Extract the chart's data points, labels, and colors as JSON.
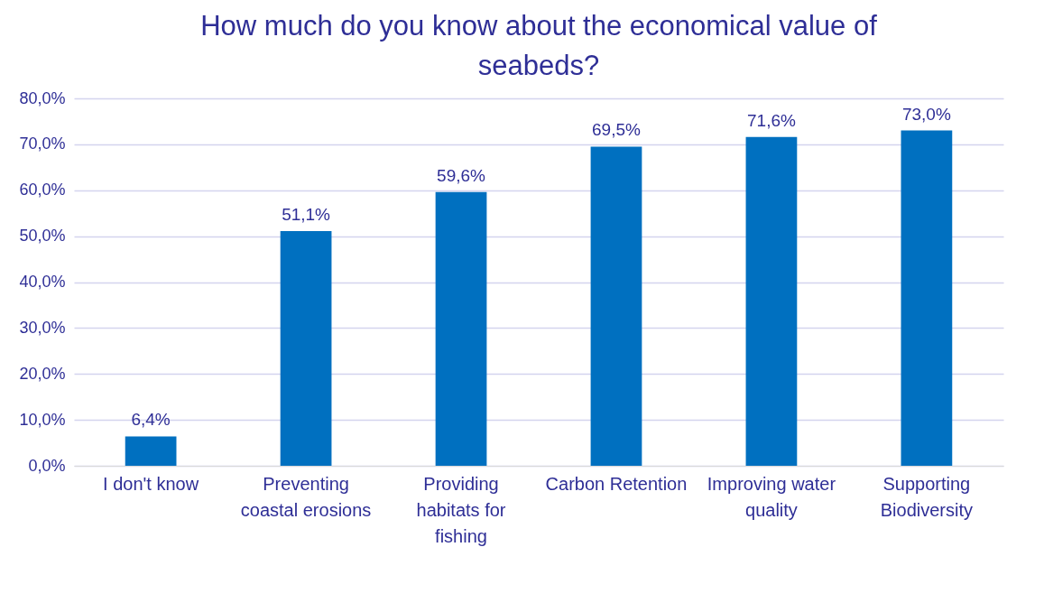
{
  "chart_data": {
    "type": "bar",
    "title": "How much do you know about the economical value of seabeds?",
    "categories": [
      "I don't know",
      "Preventing coastal erosions",
      "Providing habitats for fishing",
      "Carbon Retention",
      "Improving water quality",
      "Supporting Biodiversity"
    ],
    "values": [
      6.4,
      51.1,
      59.6,
      69.5,
      71.6,
      73.0
    ],
    "value_labels": [
      "6,4%",
      "51,1%",
      "59,6%",
      "69,5%",
      "71,6%",
      "73,0%"
    ],
    "color": "#0070c0",
    "ylim": [
      0,
      80
    ],
    "yticks": [
      {
        "value": 0,
        "label": "0,0%"
      },
      {
        "value": 10,
        "label": "10,0%"
      },
      {
        "value": 20,
        "label": "20,0%"
      },
      {
        "value": 30,
        "label": "30,0%"
      },
      {
        "value": 40,
        "label": "40,0%"
      },
      {
        "value": 50,
        "label": "50,0%"
      },
      {
        "value": 60,
        "label": "60,0%"
      },
      {
        "value": 70,
        "label": "70,0%"
      },
      {
        "value": 80,
        "label": "80,0%"
      }
    ],
    "grid": "y"
  }
}
